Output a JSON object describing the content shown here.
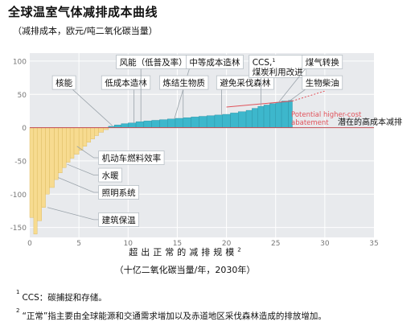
{
  "title": "全球温室气体减排成本曲线",
  "subtitle": "（减排成本，欧元/吨二氧化碳当量）",
  "footnotes": [
    {
      "mark": "1",
      "text": "CCS：碳捕捉和存储。"
    },
    {
      "mark": "2",
      "text": "“正常”指主要由全球能源和交通需求增加以及赤道地区采伐森林造成的排放增加。"
    }
  ],
  "colors": {
    "positive_bar": "#3db7cc",
    "negative_bar": "#f7db90",
    "plot_bg": "#e8eaed",
    "grid": "#ffffff",
    "potential_line": "#e0525a",
    "leader": "#9aa3aa"
  },
  "chart_data": {
    "type": "bar",
    "title": "全球温室气体减排成本曲线",
    "ylabel": "减排成本，欧元/吨二氧化碳当量",
    "xlabel": "超出正常的减排规模",
    "xlabel_footnote_mark": "2",
    "xunit": "（十亿二氧化碳当量/年，2030年）",
    "xlim": [
      0,
      35
    ],
    "ylim": [
      -165,
      112
    ],
    "xticks": [
      0,
      5,
      10,
      15,
      20,
      25,
      30,
      35
    ],
    "yticks": [
      -150,
      -100,
      -50,
      0,
      50,
      100
    ],
    "grid": true,
    "bars": [
      {
        "x0": 0.0,
        "x1": 0.4,
        "y": -135
      },
      {
        "x0": 0.4,
        "x1": 0.75,
        "y": -160
      },
      {
        "x0": 0.75,
        "x1": 1.2,
        "y": -140
      },
      {
        "x0": 1.2,
        "x1": 1.6,
        "y": -120
      },
      {
        "x0": 1.6,
        "x1": 2.0,
        "y": -100
      },
      {
        "x0": 2.0,
        "x1": 2.5,
        "y": -90
      },
      {
        "x0": 2.5,
        "x1": 2.9,
        "y": -78
      },
      {
        "x0": 2.9,
        "x1": 3.3,
        "y": -68
      },
      {
        "x0": 3.3,
        "x1": 3.7,
        "y": -60
      },
      {
        "x0": 3.7,
        "x1": 4.1,
        "y": -52
      },
      {
        "x0": 4.1,
        "x1": 4.5,
        "y": -46
      },
      {
        "x0": 4.5,
        "x1": 5.0,
        "y": -40
      },
      {
        "x0": 5.0,
        "x1": 5.4,
        "y": -34
      },
      {
        "x0": 5.4,
        "x1": 5.8,
        "y": -28
      },
      {
        "x0": 5.8,
        "x1": 6.2,
        "y": -22
      },
      {
        "x0": 6.2,
        "x1": 6.6,
        "y": -17
      },
      {
        "x0": 6.6,
        "x1": 7.0,
        "y": -12
      },
      {
        "x0": 7.0,
        "x1": 7.5,
        "y": -7
      },
      {
        "x0": 7.5,
        "x1": 8.0,
        "y": -3
      },
      {
        "x0": 8.0,
        "x1": 8.6,
        "y": 2
      },
      {
        "x0": 8.6,
        "x1": 9.3,
        "y": 4
      },
      {
        "x0": 9.3,
        "x1": 10.0,
        "y": 6
      },
      {
        "x0": 10.0,
        "x1": 10.8,
        "y": 7
      },
      {
        "x0": 10.8,
        "x1": 11.6,
        "y": 9
      },
      {
        "x0": 11.6,
        "x1": 12.4,
        "y": 10
      },
      {
        "x0": 12.4,
        "x1": 13.2,
        "y": 11
      },
      {
        "x0": 13.2,
        "x1": 14.0,
        "y": 12
      },
      {
        "x0": 14.0,
        "x1": 14.8,
        "y": 13
      },
      {
        "x0": 14.8,
        "x1": 15.6,
        "y": 14
      },
      {
        "x0": 15.6,
        "x1": 16.4,
        "y": 15
      },
      {
        "x0": 16.4,
        "x1": 17.2,
        "y": 16
      },
      {
        "x0": 17.2,
        "x1": 18.0,
        "y": 17
      },
      {
        "x0": 18.0,
        "x1": 18.8,
        "y": 18
      },
      {
        "x0": 18.8,
        "x1": 19.6,
        "y": 19
      },
      {
        "x0": 19.6,
        "x1": 20.4,
        "y": 20
      },
      {
        "x0": 20.4,
        "x1": 21.2,
        "y": 22
      },
      {
        "x0": 21.2,
        "x1": 22.0,
        "y": 24
      },
      {
        "x0": 22.0,
        "x1": 22.6,
        "y": 26
      },
      {
        "x0": 22.6,
        "x1": 23.2,
        "y": 29
      },
      {
        "x0": 23.2,
        "x1": 23.8,
        "y": 32
      },
      {
        "x0": 23.8,
        "x1": 24.4,
        "y": 34
      },
      {
        "x0": 24.4,
        "x1": 25.0,
        "y": 36
      },
      {
        "x0": 25.0,
        "x1": 25.6,
        "y": 38
      },
      {
        "x0": 25.6,
        "x1": 26.3,
        "y": 40
      },
      {
        "x0": 26.3,
        "x1": 26.7,
        "y": 41
      }
    ],
    "potential_line": [
      [
        20.0,
        31
      ],
      [
        26.7,
        40
      ],
      [
        30.0,
        55
      ]
    ],
    "callouts": [
      {
        "text": "核能",
        "box": [
          2.3,
          78
        ],
        "point": [
          8.4,
          3
        ]
      },
      {
        "text": "低成本造林",
        "box": [
          7.3,
          78
        ],
        "point": [
          10.6,
          7
        ]
      },
      {
        "text": "风能（低普及率）",
        "box": [
          8.8,
          109
        ],
        "point": [
          11.3,
          9
        ]
      },
      {
        "text": "中等成本造林",
        "box": [
          15.9,
          109
        ],
        "point": [
          14.7,
          13
        ]
      },
      {
        "text": "炼结生物质",
        "box": [
          13.2,
          78
        ],
        "point": [
          15.6,
          15
        ]
      },
      {
        "text": "避免采伐森林",
        "box": [
          19.0,
          78
        ],
        "point": [
          19.5,
          19
        ]
      },
      {
        "text": "CCS,",
        "sup": "1",
        "text2": "煤炭利用改进",
        "box": [
          22.3,
          109
        ],
        "point": [
          23.5,
          32
        ]
      },
      {
        "text": "煤气转换",
        "box": [
          27.7,
          109
        ],
        "point": [
          25.3,
          38
        ]
      },
      {
        "text": "生物柴油",
        "box": [
          27.7,
          78
        ],
        "point": [
          26.5,
          41
        ]
      },
      {
        "text": "机动车燃料效率",
        "box": [
          7.0,
          -35
        ],
        "point": [
          4.8,
          -28
        ]
      },
      {
        "text": "水暖",
        "box": [
          7.0,
          -61
        ],
        "point": [
          3.8,
          -55
        ]
      },
      {
        "text": "照明系统",
        "box": [
          7.0,
          -87
        ],
        "point": [
          2.9,
          -75
        ]
      },
      {
        "text": "建筑保温",
        "box": [
          7.0,
          -128
        ],
        "point": [
          1.8,
          -120
        ]
      }
    ],
    "annotations": {
      "potential_en": "Potential higher-cost abatement",
      "potential_en_line1": "Potential higher-cost",
      "potential_en_line2": "abatement",
      "potential_cn": "潜在的高成本减排"
    }
  }
}
